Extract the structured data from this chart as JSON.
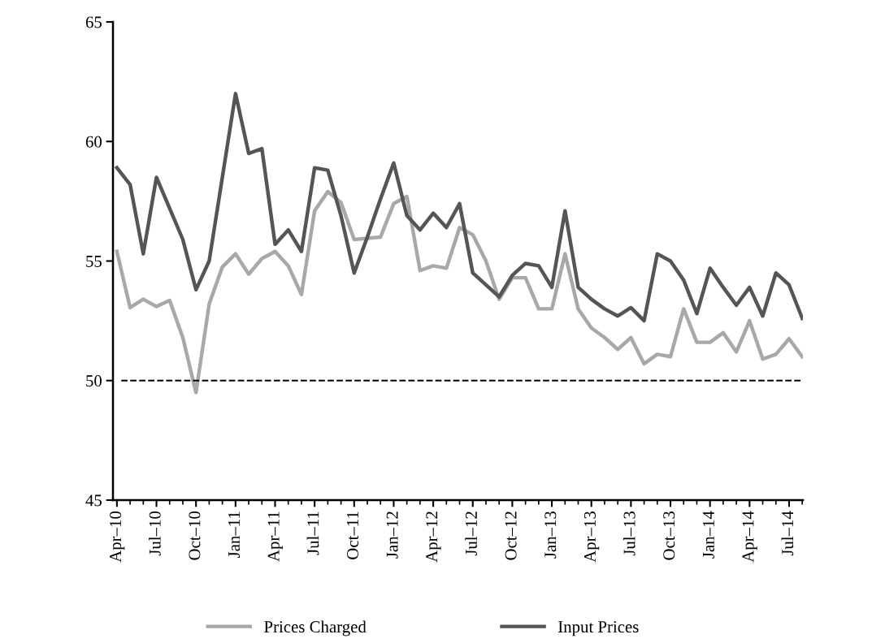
{
  "chart_data": {
    "type": "line",
    "categories": [
      "Apr–10",
      null,
      null,
      "Jul–10",
      null,
      null,
      "Oct–10",
      null,
      null,
      "Jan–11",
      null,
      null,
      "Apr–11",
      null,
      null,
      "Jul–11",
      null,
      null,
      "Oct–11",
      null,
      null,
      "Jan–12",
      null,
      null,
      "Apr–12",
      null,
      null,
      "Jul–12",
      null,
      null,
      "Oct–12",
      null,
      null,
      "Jan–13",
      null,
      null,
      "Apr–13",
      null,
      null,
      "Jul–13",
      null,
      null,
      "Oct–13",
      null,
      null,
      "Jan–14",
      null,
      null,
      "Apr–14",
      null,
      null,
      "Jul–14",
      null
    ],
    "series": [
      {
        "name": "Prices Charged",
        "color": "#a7a8aa",
        "values": [
          55.4,
          53.05,
          53.4,
          53.1,
          53.35,
          51.8,
          49.5,
          53.2,
          54.75,
          55.3,
          54.45,
          55.1,
          55.4,
          54.8,
          53.6,
          57.1,
          57.9,
          57.45,
          55.9,
          55.95,
          56.0,
          57.4,
          57.7,
          54.6,
          54.8,
          54.7,
          56.4,
          56.1,
          55.0,
          53.4,
          54.3,
          54.3,
          53.0,
          53.0,
          55.3,
          53.0,
          52.2,
          51.8,
          51.3,
          51.8,
          50.7,
          51.1,
          51.0,
          53.0,
          51.6,
          51.6,
          52.0,
          51.2,
          52.5,
          50.9,
          51.1,
          51.75,
          51.0
        ]
      },
      {
        "name": "Input Prices",
        "color": "#545557",
        "values": [
          58.9,
          58.2,
          55.3,
          58.5,
          57.2,
          55.9,
          53.8,
          55.0,
          58.5,
          62.0,
          59.5,
          59.7,
          55.7,
          56.3,
          55.4,
          58.9,
          58.8,
          56.9,
          54.5,
          56.0,
          57.6,
          59.1,
          56.9,
          56.3,
          57.0,
          56.4,
          57.4,
          54.5,
          54.0,
          53.5,
          54.4,
          54.9,
          54.8,
          53.9,
          57.1,
          53.9,
          53.4,
          53.0,
          52.7,
          53.05,
          52.5,
          55.3,
          55.0,
          54.2,
          52.8,
          54.7,
          53.9,
          53.15,
          53.9,
          52.7,
          54.5,
          54.0,
          52.6
        ]
      }
    ],
    "ylim": [
      45,
      65
    ],
    "yticks": [
      45,
      50,
      55,
      60,
      65
    ],
    "ref_lines": [
      {
        "axis": "y",
        "value": 50,
        "color": "#000000",
        "line_style": "dashed"
      }
    ],
    "grid": false,
    "legend": "bottom",
    "marker": "none",
    "line_style": "solid"
  }
}
